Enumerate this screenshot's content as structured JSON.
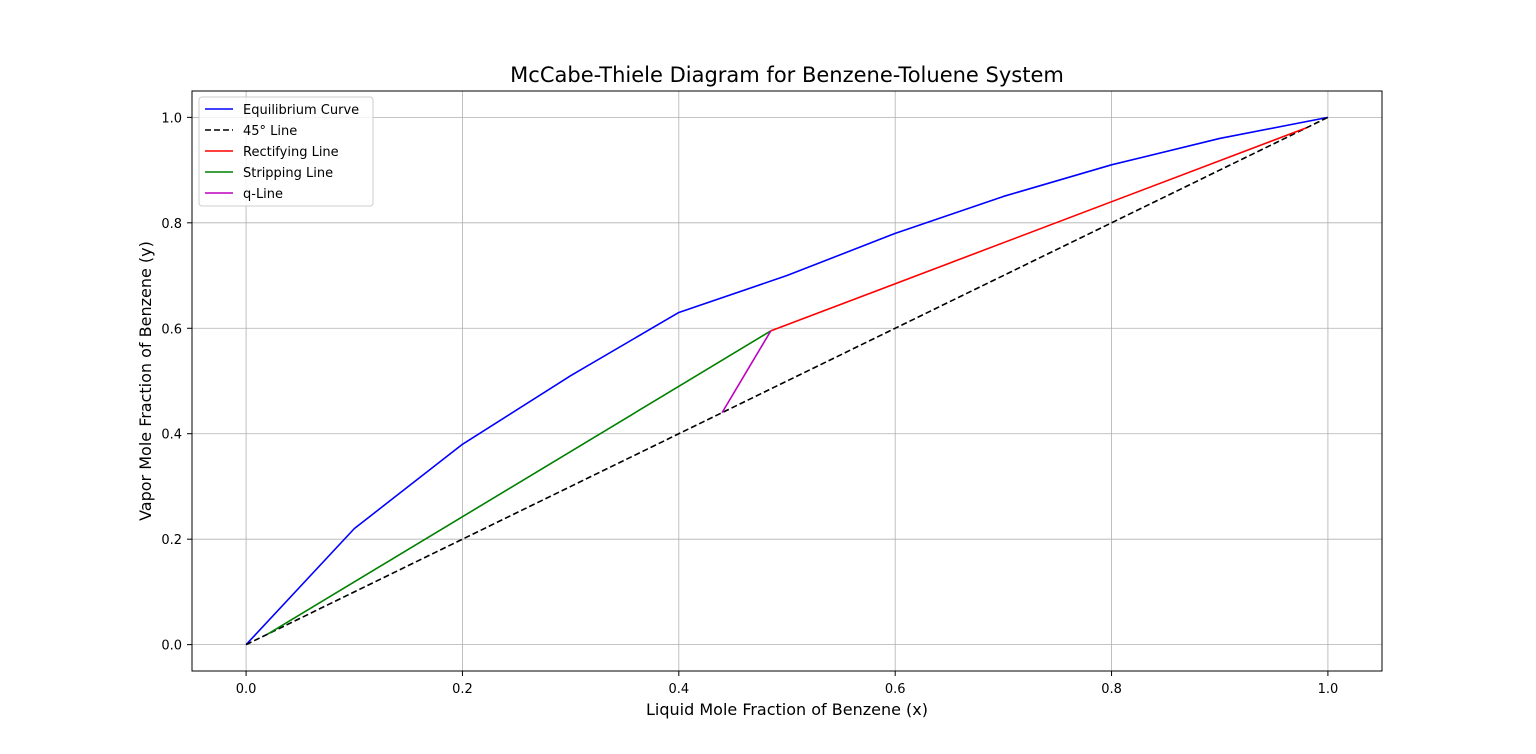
{
  "chart_data": {
    "type": "line",
    "title": "McCabe-Thiele Diagram for Benzene-Toluene System",
    "xlabel": "Liquid Mole Fraction of Benzene (x)",
    "ylabel": "Vapor Mole Fraction of Benzene (y)",
    "xlim": [
      -0.05,
      1.05
    ],
    "ylim": [
      -0.05,
      1.05
    ],
    "xticks": [
      0.0,
      0.2,
      0.4,
      0.6,
      0.8,
      1.0
    ],
    "yticks": [
      0.0,
      0.2,
      0.4,
      0.6,
      0.8,
      1.0
    ],
    "xtick_labels": [
      "0.0",
      "0.2",
      "0.4",
      "0.6",
      "0.8",
      "1.0"
    ],
    "ytick_labels": [
      "0.0",
      "0.2",
      "0.4",
      "0.6",
      "0.8",
      "1.0"
    ],
    "grid": true,
    "legend_position": "top-left",
    "series": [
      {
        "name": "Equilibrium Curve",
        "color": "#0000ff",
        "style": "solid",
        "x": [
          0.0,
          0.1,
          0.2,
          0.3,
          0.4,
          0.5,
          0.6,
          0.7,
          0.8,
          0.9,
          1.0
        ],
        "y": [
          0.0,
          0.22,
          0.38,
          0.51,
          0.63,
          0.7,
          0.78,
          0.85,
          0.91,
          0.96,
          1.0
        ]
      },
      {
        "name": "45° Line",
        "color": "#000000",
        "style": "dashed",
        "x": [
          0.0,
          1.0
        ],
        "y": [
          0.0,
          1.0
        ]
      },
      {
        "name": "Rectifying Line",
        "color": "#ff0000",
        "style": "solid",
        "x": [
          0.485,
          0.98
        ],
        "y": [
          0.595,
          0.98
        ]
      },
      {
        "name": "Stripping Line",
        "color": "#008000",
        "style": "solid",
        "x": [
          0.02,
          0.485
        ],
        "y": [
          0.02,
          0.595
        ]
      },
      {
        "name": "q-Line",
        "color": "#bf00bf",
        "style": "solid",
        "x": [
          0.44,
          0.485
        ],
        "y": [
          0.44,
          0.595
        ]
      }
    ]
  }
}
